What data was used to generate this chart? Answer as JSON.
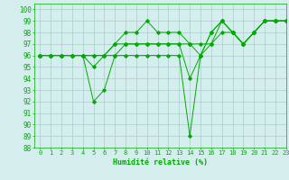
{
  "title": "",
  "xlabel": "Humidité relative (%)",
  "ylabel": "",
  "background_color": "#d4eeee",
  "grid_color": "#aacccc",
  "line_color": "#00aa00",
  "xlim": [
    -0.5,
    23
  ],
  "ylim": [
    88,
    100.5
  ],
  "xticks": [
    0,
    1,
    2,
    3,
    4,
    5,
    6,
    7,
    8,
    9,
    10,
    11,
    12,
    13,
    14,
    15,
    16,
    17,
    18,
    19,
    20,
    21,
    22,
    23
  ],
  "yticks": [
    88,
    89,
    90,
    91,
    92,
    93,
    94,
    95,
    96,
    97,
    98,
    99,
    100
  ],
  "series": [
    [
      96,
      96,
      96,
      96,
      96,
      95,
      96,
      96,
      97,
      97,
      97,
      97,
      97,
      97,
      94,
      96,
      98,
      99,
      98,
      97,
      98,
      99,
      99,
      99
    ],
    [
      96,
      96,
      96,
      96,
      96,
      92,
      93,
      96,
      96,
      96,
      96,
      96,
      96,
      96,
      89,
      96,
      98,
      99,
      98,
      97,
      98,
      99,
      99,
      99
    ],
    [
      96,
      96,
      96,
      96,
      96,
      96,
      96,
      97,
      98,
      98,
      99,
      98,
      98,
      98,
      97,
      97,
      97,
      99,
      98,
      97,
      98,
      99,
      99,
      99
    ],
    [
      96,
      96,
      96,
      96,
      96,
      96,
      96,
      97,
      97,
      97,
      97,
      97,
      97,
      97,
      97,
      96,
      97,
      98,
      98,
      97,
      98,
      99,
      99,
      99
    ]
  ]
}
